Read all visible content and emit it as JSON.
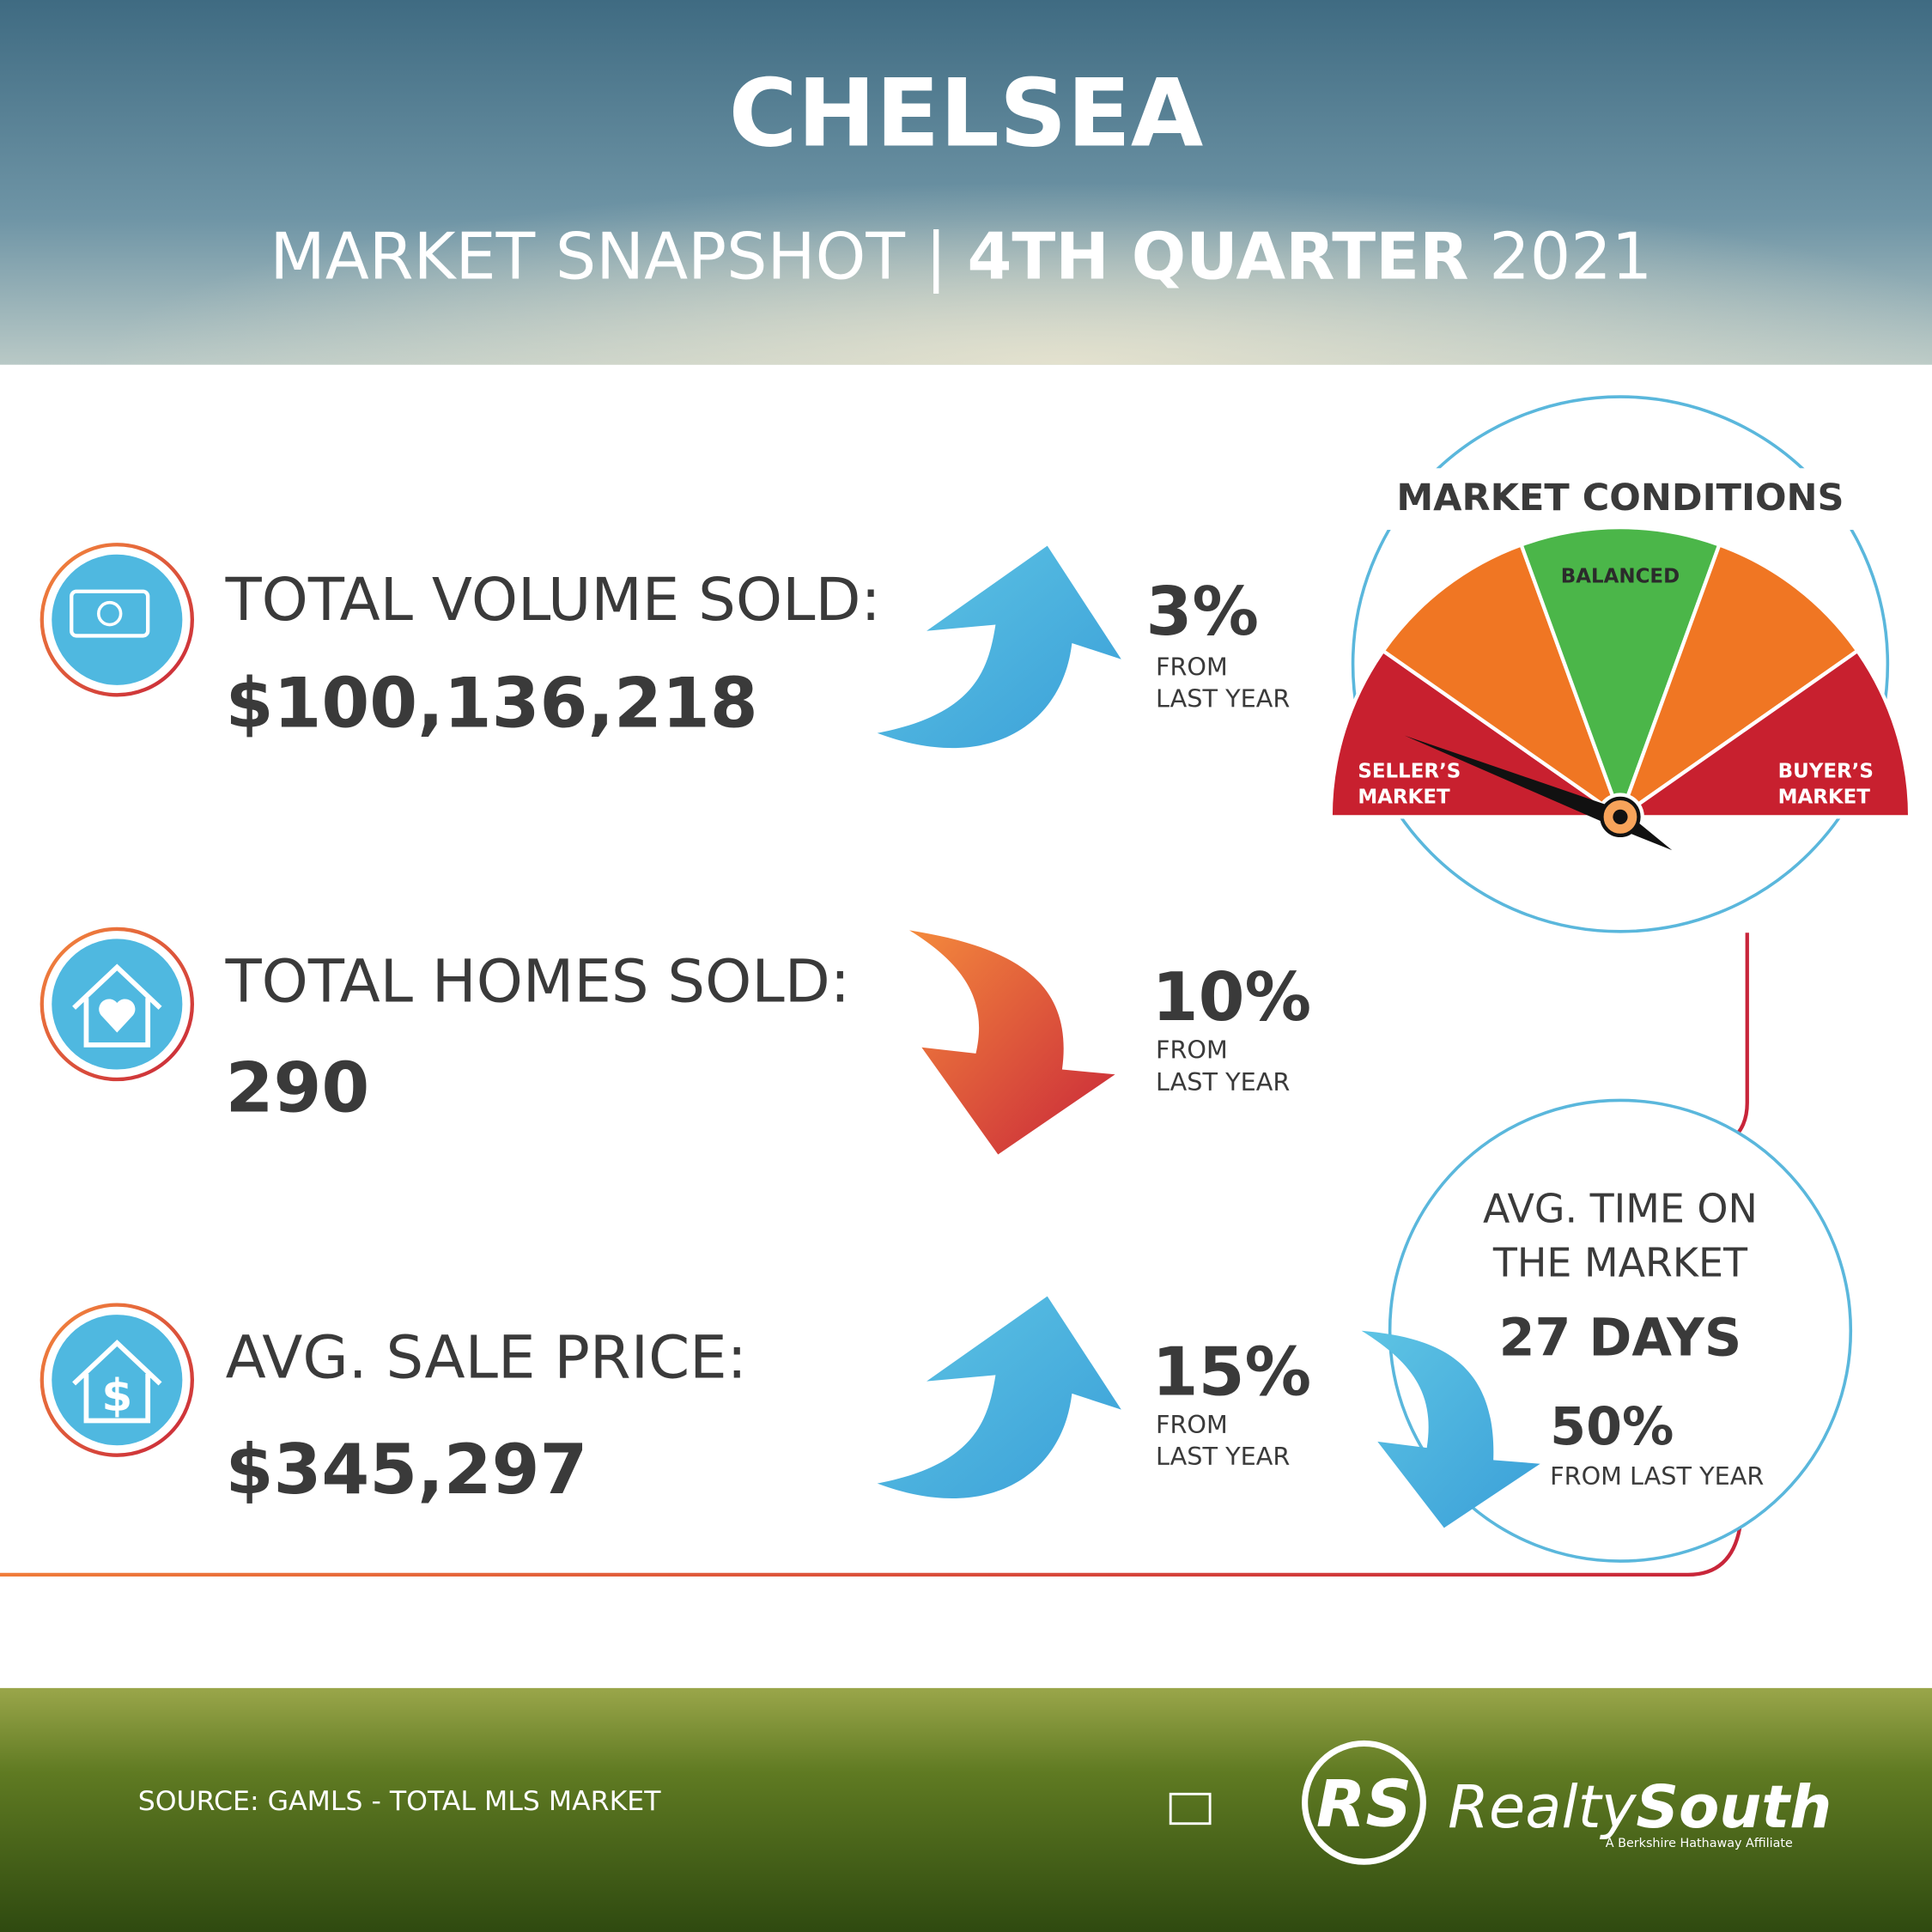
{
  "header": {
    "title": "CHELSEA",
    "subtitle": {
      "lead": "MARKET SNAPSHOT",
      "separator": "|",
      "quarter": "4TH QUARTER",
      "year": "2021"
    }
  },
  "metrics": [
    {
      "label": "TOTAL VOLUME SOLD:",
      "value": "$100,136,218",
      "change": "3%",
      "note": [
        "FROM",
        "LAST YEAR"
      ]
    },
    {
      "label": "TOTAL HOMES SOLD:",
      "value": "290",
      "change": "10%",
      "note": [
        "FROM",
        "LAST YEAR"
      ]
    },
    {
      "label": "AVG. SALE PRICE:",
      "value": "$345,297",
      "change": "15%",
      "note": [
        "FROM",
        "LAST YEAR"
      ]
    }
  ],
  "market_conditions": {
    "title": "MARKET CONDITIONS",
    "balanced": "BALANCED",
    "seller": [
      "SELLER’S",
      "MARKET"
    ],
    "buyer": [
      "BUYER’S",
      "MARKET"
    ]
  },
  "time_on_market": {
    "label": [
      "AVG. TIME ON",
      "THE MARKET"
    ],
    "value": "27 DAYS",
    "change": "50%",
    "note": "FROM LAST YEAR"
  },
  "footer": {
    "source": "SOURCE: GAMLS - TOTAL MLS MARKET",
    "logo_mark": "RS",
    "logo_realty": "Realty",
    "logo_south": "South",
    "logo_tagline": "A Berkshire Hathaway Affiliate"
  }
}
